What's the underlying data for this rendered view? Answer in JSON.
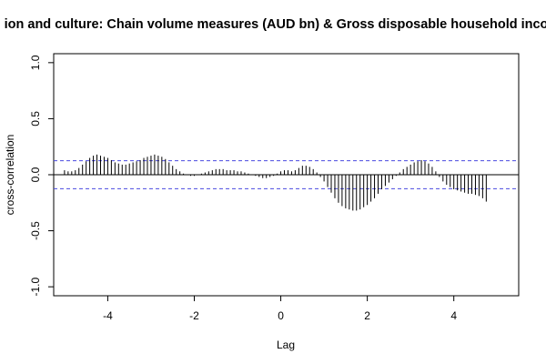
{
  "chart_data": {
    "type": "bar",
    "title": "ion and culture: Chain volume measures (AUD bn) & Gross disposable household income",
    "xlabel": "Lag",
    "ylabel": "cross-correlation",
    "xlim": [
      -5.25,
      5.5
    ],
    "ylim": [
      -1.08,
      1.08
    ],
    "x_ticks": [
      -4,
      -2,
      0,
      2,
      4
    ],
    "y_ticks": [
      -1.0,
      -0.5,
      0.0,
      0.5,
      1.0
    ],
    "x_tick_labels": [
      "-4",
      "-2",
      "0",
      "2",
      "4"
    ],
    "y_tick_labels": [
      "-1.0",
      "-0.5",
      "0.0",
      "0.5",
      "1.0"
    ],
    "confidence_bounds": [
      0.125,
      -0.125
    ],
    "lag_start": -5.0,
    "lag_step": 0.0833333,
    "values": [
      0.04,
      0.03,
      0.03,
      0.04,
      0.06,
      0.09,
      0.12,
      0.15,
      0.17,
      0.18,
      0.17,
      0.16,
      0.15,
      0.13,
      0.11,
      0.1,
      0.09,
      0.09,
      0.1,
      0.11,
      0.12,
      0.13,
      0.15,
      0.16,
      0.17,
      0.18,
      0.17,
      0.16,
      0.14,
      0.11,
      0.08,
      0.05,
      0.03,
      0.01,
      0.0,
      -0.01,
      -0.01,
      0.0,
      0.01,
      0.02,
      0.03,
      0.04,
      0.05,
      0.05,
      0.05,
      0.04,
      0.04,
      0.04,
      0.03,
      0.03,
      0.02,
      0.01,
      0.0,
      -0.01,
      -0.02,
      -0.03,
      -0.03,
      -0.02,
      -0.01,
      0.01,
      0.03,
      0.04,
      0.04,
      0.03,
      0.04,
      0.06,
      0.08,
      0.08,
      0.07,
      0.05,
      0.02,
      -0.02,
      -0.06,
      -0.11,
      -0.16,
      -0.21,
      -0.25,
      -0.28,
      -0.3,
      -0.31,
      -0.32,
      -0.32,
      -0.31,
      -0.29,
      -0.27,
      -0.24,
      -0.21,
      -0.17,
      -0.13,
      -0.1,
      -0.07,
      -0.04,
      -0.01,
      0.02,
      0.05,
      0.07,
      0.09,
      0.11,
      0.12,
      0.13,
      0.12,
      0.1,
      0.07,
      0.03,
      -0.02,
      -0.06,
      -0.09,
      -0.11,
      -0.13,
      -0.14,
      -0.15,
      -0.16,
      -0.17,
      -0.17,
      -0.18,
      -0.19,
      -0.21,
      -0.24
    ],
    "colors": {
      "spikes": "#000000",
      "bounds": "#4a4ae0",
      "zero_line": "#000000",
      "frame": "#000000"
    }
  }
}
